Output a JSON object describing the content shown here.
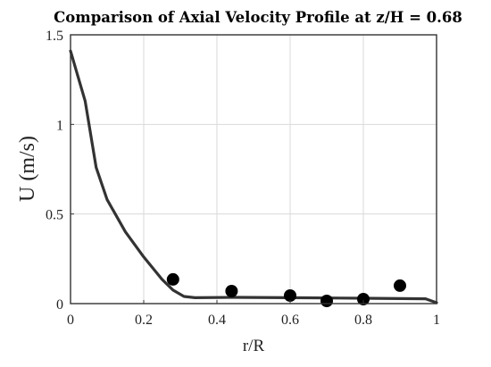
{
  "chart_data": {
    "type": "line",
    "title": "Comparison of Axial Velocity Profile at z/H = 0.68",
    "xlabel": "r/R",
    "ylabel": "U (m/s)",
    "xlim": [
      0,
      1
    ],
    "ylim": [
      0,
      1.5
    ],
    "xticks": [
      0,
      0.2,
      0.4,
      0.6,
      0.8,
      1
    ],
    "xtick_labels": [
      "0",
      "0.2",
      "0.4",
      "0.6",
      "0.8",
      "1"
    ],
    "yticks": [
      0,
      0.5,
      1,
      1.5
    ],
    "ytick_labels": [
      "0",
      "0.5",
      "1",
      "1.5"
    ],
    "grid": true,
    "series": [
      {
        "kind": "line",
        "color": "#333333",
        "x": [
          0,
          0.02,
          0.04,
          0.07,
          0.1,
          0.15,
          0.2,
          0.25,
          0.28,
          0.31,
          0.34,
          0.45,
          0.6,
          0.8,
          0.97,
          1.0
        ],
        "y": [
          1.41,
          1.27,
          1.13,
          0.76,
          0.58,
          0.4,
          0.26,
          0.135,
          0.075,
          0.04,
          0.033,
          0.035,
          0.033,
          0.03,
          0.027,
          0.005
        ]
      },
      {
        "kind": "scatter",
        "color": "#000000",
        "x": [
          0.28,
          0.44,
          0.6,
          0.7,
          0.8,
          0.9
        ],
        "y": [
          0.135,
          0.07,
          0.045,
          0.015,
          0.025,
          0.1
        ]
      }
    ]
  }
}
